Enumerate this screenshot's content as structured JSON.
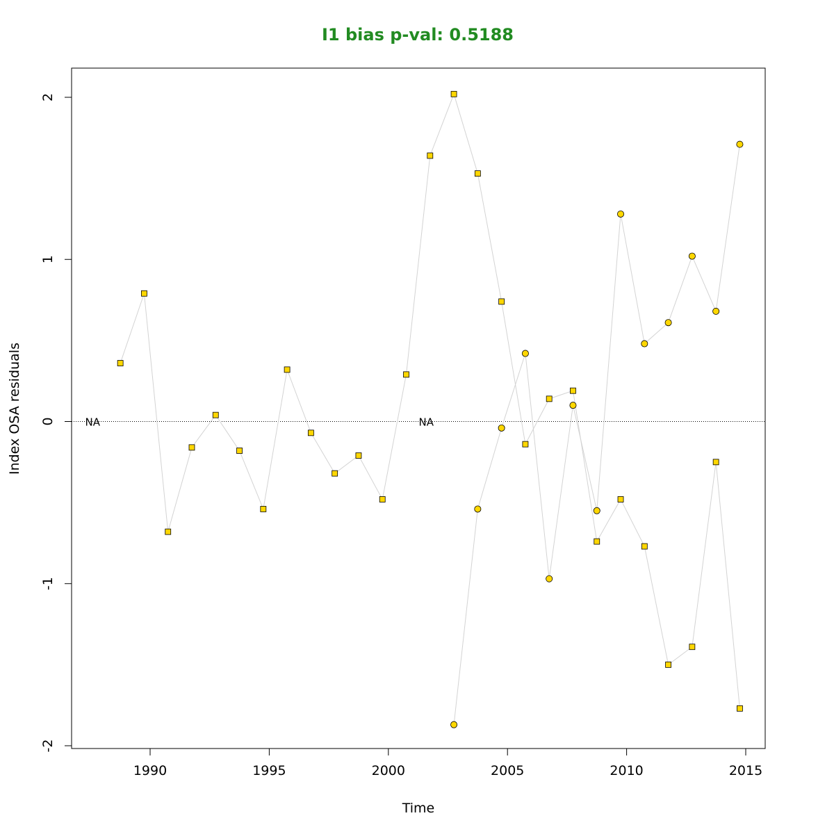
{
  "chart_data": {
    "type": "scatter",
    "title": "I1 bias p-val: 0.5188",
    "title_color": "#228B22",
    "xlabel": "Time",
    "ylabel": "Index OSA residuals",
    "xlim": [
      1986.6,
      2015.8
    ],
    "ylim": [
      -2.0,
      2.0
    ],
    "x_ticks": [
      1990,
      1995,
      2000,
      2005,
      2010,
      2015
    ],
    "y_ticks": [
      -2,
      -1,
      0,
      1,
      2
    ],
    "x_tick_labels": [
      "1990",
      "1995",
      "2000",
      "2005",
      "2010",
      "2015"
    ],
    "y_tick_labels": [
      "-2",
      "-1",
      "0",
      "1",
      "2"
    ],
    "reference_line": {
      "y": 0,
      "style": "dotted"
    },
    "na_labels": [
      {
        "x": 1987.5,
        "text": "NA"
      },
      {
        "x": 2001.5,
        "text": "NA"
      }
    ],
    "marker_fill": "#FFD700",
    "line_color": "#d3d3d3",
    "grid": false,
    "series": [
      {
        "marker": "square",
        "x": [
          1988.75,
          1989.75,
          1990.75,
          1991.75,
          1992.75,
          1993.75,
          1994.75,
          1995.75,
          1996.75,
          1997.75,
          1998.75,
          1999.75,
          2000.75,
          2001.75,
          2002.75,
          2003.75,
          2004.75,
          2005.75,
          2006.75,
          2007.75,
          2008.75,
          2009.75,
          2010.75,
          2011.75,
          2012.75,
          2013.75,
          2014.75
        ],
        "y": [
          0.36,
          0.79,
          -0.68,
          -0.16,
          0.04,
          -0.18,
          -0.54,
          0.32,
          -0.07,
          -0.32,
          -0.21,
          -0.48,
          0.29,
          1.64,
          2.02,
          1.53,
          0.74,
          -0.14,
          0.14,
          0.19,
          -0.74,
          -0.48,
          -0.77,
          -1.5,
          -1.39,
          -0.25,
          -1.77
        ]
      },
      {
        "marker": "circle",
        "x": [
          2002.75,
          2003.75,
          2004.75,
          2005.75,
          2006.75,
          2007.75,
          2008.75,
          2009.75,
          2010.75,
          2011.75,
          2012.75,
          2013.75,
          2014.75
        ],
        "y": [
          -1.87,
          -0.54,
          -0.04,
          0.42,
          -0.97,
          0.1,
          -0.55,
          1.28,
          0.48,
          0.61,
          1.02,
          0.68,
          1.71
        ]
      }
    ]
  }
}
